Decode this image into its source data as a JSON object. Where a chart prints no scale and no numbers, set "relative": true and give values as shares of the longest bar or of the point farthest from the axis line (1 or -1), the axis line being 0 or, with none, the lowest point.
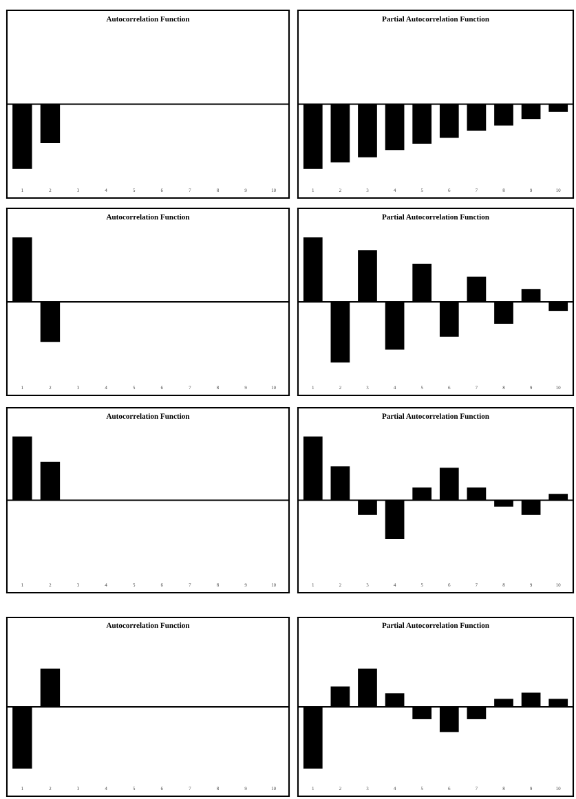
{
  "chart_data": [
    {
      "type": "bar",
      "title": "Autocorrelation Function",
      "relative": true,
      "categories": [
        "1",
        "2",
        "3",
        "4",
        "5",
        "6",
        "7",
        "8",
        "9",
        "10"
      ],
      "values": [
        -1,
        -0.6,
        0,
        0,
        0,
        0,
        0,
        0,
        0,
        0
      ],
      "color": "#000000"
    },
    {
      "type": "bar",
      "title": "Partial Autocorrelation Function",
      "relative": true,
      "categories": [
        "1",
        "2",
        "3",
        "4",
        "5",
        "6",
        "7",
        "8",
        "9",
        "10"
      ],
      "values": [
        -1,
        -0.9,
        -0.82,
        -0.71,
        -0.61,
        -0.52,
        -0.41,
        -0.33,
        -0.23,
        -0.12
      ],
      "color": "#000000"
    },
    {
      "type": "bar",
      "title": "Autocorrelation Function",
      "relative": true,
      "categories": [
        "1",
        "2",
        "3",
        "4",
        "5",
        "6",
        "7",
        "8",
        "9",
        "10"
      ],
      "values": [
        1,
        -0.62,
        0,
        0,
        0,
        0,
        0,
        0,
        0,
        0
      ],
      "color": "#000000"
    },
    {
      "type": "bar",
      "title": "Partial Autocorrelation Function",
      "relative": true,
      "categories": [
        "1",
        "2",
        "3",
        "4",
        "5",
        "6",
        "7",
        "8",
        "9",
        "10"
      ],
      "values": [
        1,
        -0.94,
        0.8,
        -0.74,
        0.59,
        -0.54,
        0.39,
        -0.34,
        0.2,
        -0.14
      ],
      "color": "#000000"
    },
    {
      "type": "bar",
      "title": "Autocorrelation Function",
      "relative": true,
      "categories": [
        "1",
        "2",
        "3",
        "4",
        "5",
        "6",
        "7",
        "8",
        "9",
        "10"
      ],
      "values": [
        1,
        0.6,
        0,
        0,
        0,
        0,
        0,
        0,
        0,
        0
      ],
      "color": "#000000"
    },
    {
      "type": "bar",
      "title": "Partial Autocorrelation Function",
      "relative": true,
      "categories": [
        "1",
        "2",
        "3",
        "4",
        "5",
        "6",
        "7",
        "8",
        "9",
        "10"
      ],
      "values": [
        1,
        0.53,
        -0.23,
        -0.61,
        0.2,
        0.51,
        0.2,
        -0.1,
        -0.23,
        0.1
      ],
      "color": "#000000"
    },
    {
      "type": "bar",
      "title": "Autocorrelation Function",
      "relative": true,
      "categories": [
        "1",
        "2",
        "3",
        "4",
        "5",
        "6",
        "7",
        "8",
        "9",
        "10"
      ],
      "values": [
        -1,
        0.62,
        0,
        0,
        0,
        0,
        0,
        0,
        0,
        0
      ],
      "color": "#000000"
    },
    {
      "type": "bar",
      "title": "Partial Autocorrelation Function",
      "relative": true,
      "categories": [
        "1",
        "2",
        "3",
        "4",
        "5",
        "6",
        "7",
        "8",
        "9",
        "10"
      ],
      "values": [
        -1,
        0.33,
        0.62,
        0.22,
        -0.2,
        -0.41,
        -0.2,
        0.13,
        0.23,
        0.13
      ],
      "color": "#000000"
    }
  ]
}
